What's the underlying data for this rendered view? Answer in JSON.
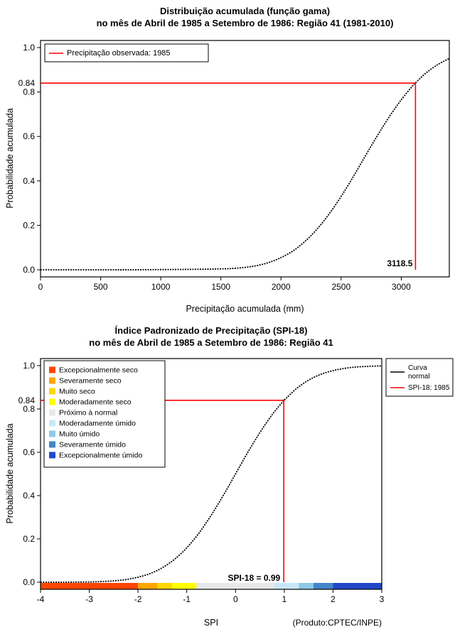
{
  "page": {
    "background": "#FFFFFF",
    "text_color": "#000000",
    "accent_red": "#FF0000"
  },
  "chart_data": [
    {
      "id": "gamma-cdf",
      "type": "line",
      "title": "Distribuição acumulada (função gama)",
      "subtitle": "no mês de Abril de 1985 a Setembro de 1986: Região 41 (1981-2010)",
      "xlabel": "Precipitação acumulada (mm)",
      "ylabel": "Probabilidade acumulada",
      "xlim": [
        0,
        3400
      ],
      "ylim": [
        0,
        1.0
      ],
      "xticks": [
        0,
        500,
        1000,
        1500,
        2000,
        2500,
        3000
      ],
      "yticks": [
        0.0,
        0.2,
        0.4,
        0.6,
        0.8,
        1.0
      ],
      "grid": false,
      "legend_position": "top-left",
      "legend": {
        "entries": [
          {
            "lines": [
              "Precipitação observada: 1985"
            ],
            "color": "#FF0000"
          }
        ]
      },
      "series": [
        {
          "key": "gamma-curve",
          "color": "#000000",
          "points": [
            [
              0,
              0
            ],
            [
              250,
              0
            ],
            [
              500,
              0
            ],
            [
              750,
              0
            ],
            [
              1000,
              0.001
            ],
            [
              1250,
              0.002
            ],
            [
              1500,
              0.004
            ],
            [
              1600,
              0.006
            ],
            [
              1700,
              0.011
            ],
            [
              1800,
              0.019
            ],
            [
              1900,
              0.033
            ],
            [
              2000,
              0.055
            ],
            [
              2100,
              0.085
            ],
            [
              2200,
              0.128
            ],
            [
              2300,
              0.183
            ],
            [
              2400,
              0.251
            ],
            [
              2500,
              0.33
            ],
            [
              2600,
              0.418
            ],
            [
              2700,
              0.511
            ],
            [
              2800,
              0.602
            ],
            [
              2900,
              0.688
            ],
            [
              3000,
              0.765
            ],
            [
              3100,
              0.831
            ],
            [
              3118.5,
              0.841
            ],
            [
              3200,
              0.883
            ],
            [
              3300,
              0.922
            ],
            [
              3400,
              0.951
            ]
          ]
        }
      ],
      "marker": {
        "x": 3118.5,
        "y": 0.84,
        "x_label": "3118.5",
        "y_axis_label": "0.84",
        "color": "#FF0000"
      }
    },
    {
      "id": "spi-cdf",
      "type": "line",
      "title": "Índice Padronizado de Precipitação (SPI-18)",
      "subtitle": "no mês de Abril de 1985 a Setembro de 1986: Região 41",
      "xlabel": "SPI",
      "ylabel": "Probabilidade acumulada",
      "note": "(Produto:CPTEC/INPE)",
      "xlim": [
        -4,
        3
      ],
      "ylim": [
        0,
        1.0
      ],
      "xticks": [
        -4,
        -3,
        -2,
        -1,
        0,
        1,
        2,
        3
      ],
      "yticks": [
        0.0,
        0.2,
        0.4,
        0.6,
        0.8,
        1.0
      ],
      "grid": false,
      "legend_position": "top-right",
      "legend": {
        "entries": [
          {
            "lines": [
              "Curva",
              "normal"
            ],
            "color": "#000000"
          },
          {
            "lines": [
              "SPI-18: 1985"
            ],
            "color": "#FF0000"
          }
        ]
      },
      "series": [
        {
          "key": "normal-curve",
          "color": "#000000",
          "points": [
            [
              -4,
              0
            ],
            [
              -3.5,
              0
            ],
            [
              -3,
              0.001
            ],
            [
              -2.75,
              0.003
            ],
            [
              -2.5,
              0.006
            ],
            [
              -2.25,
              0.012
            ],
            [
              -2,
              0.023
            ],
            [
              -1.75,
              0.04
            ],
            [
              -1.5,
              0.067
            ],
            [
              -1.25,
              0.106
            ],
            [
              -1,
              0.159
            ],
            [
              -0.75,
              0.227
            ],
            [
              -0.5,
              0.309
            ],
            [
              -0.25,
              0.401
            ],
            [
              0,
              0.5
            ],
            [
              0.25,
              0.599
            ],
            [
              0.5,
              0.691
            ],
            [
              0.75,
              0.773
            ],
            [
              0.99,
              0.839
            ],
            [
              1,
              0.841
            ],
            [
              1.25,
              0.894
            ],
            [
              1.5,
              0.933
            ],
            [
              1.75,
              0.96
            ],
            [
              2,
              0.977
            ],
            [
              2.25,
              0.988
            ],
            [
              2.5,
              0.994
            ],
            [
              2.75,
              0.997
            ],
            [
              3,
              0.999
            ]
          ]
        }
      ],
      "categories": [
        {
          "label": "Excepcionalmente seco",
          "color": "#FF4500"
        },
        {
          "label": "Severamente seco",
          "color": "#FFA500"
        },
        {
          "label": "Muito seco",
          "color": "#FFD700"
        },
        {
          "label": "Moderadamente seco",
          "color": "#FFFF00"
        },
        {
          "label": "Próximo à normal",
          "color": "#E8E8E8"
        },
        {
          "label": "Moderadamente úmido",
          "color": "#C9E7F8"
        },
        {
          "label": "Muito úmido",
          "color": "#8FC9E8"
        },
        {
          "label": "Severamente úmido",
          "color": "#4287C8"
        },
        {
          "label": "Excepcionalmente úmido",
          "color": "#2148C8"
        }
      ],
      "category_bar": [
        {
          "from": -4,
          "to": -2,
          "color": "#FF4500"
        },
        {
          "from": -2,
          "to": -1.6,
          "color": "#FFA500"
        },
        {
          "from": -1.6,
          "to": -1.3,
          "color": "#FFD700"
        },
        {
          "from": -1.3,
          "to": -0.8,
          "color": "#FFFF00"
        },
        {
          "from": -0.8,
          "to": 0.8,
          "color": "#E8E8E8"
        },
        {
          "from": 0.8,
          "to": 1.3,
          "color": "#C9E7F8"
        },
        {
          "from": 1.3,
          "to": 1.6,
          "color": "#8FC9E8"
        },
        {
          "from": 1.6,
          "to": 2,
          "color": "#4287C8"
        },
        {
          "from": 2,
          "to": 3,
          "color": "#2148C8"
        }
      ],
      "marker": {
        "x": 0.99,
        "y": 0.84,
        "label": "SPI-18 = 0.99",
        "y_axis_label": "0.84",
        "color": "#FF0000"
      }
    }
  ]
}
